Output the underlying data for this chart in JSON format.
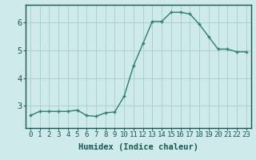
{
  "x": [
    0,
    1,
    2,
    3,
    4,
    5,
    6,
    7,
    8,
    9,
    10,
    11,
    12,
    13,
    14,
    15,
    16,
    17,
    18,
    19,
    20,
    21,
    22,
    23
  ],
  "y": [
    2.65,
    2.8,
    2.8,
    2.8,
    2.8,
    2.85,
    2.65,
    2.62,
    2.75,
    2.78,
    3.35,
    4.45,
    5.25,
    6.05,
    6.05,
    6.38,
    6.38,
    6.32,
    5.95,
    5.5,
    5.05,
    5.05,
    4.95,
    4.95
  ],
  "line_color": "#2e7d6e",
  "marker": "+",
  "marker_size": 3,
  "marker_lw": 1.0,
  "line_width": 1.0,
  "bg_color": "#ceeaea",
  "grid_color": "#aacccc",
  "axis_color": "#1a5555",
  "tick_color": "#1a5555",
  "xlabel": "Humidex (Indice chaleur)",
  "xlim": [
    -0.5,
    23.5
  ],
  "ylim": [
    2.2,
    6.65
  ],
  "yticks": [
    3,
    4,
    5,
    6
  ],
  "xticks": [
    0,
    1,
    2,
    3,
    4,
    5,
    6,
    7,
    8,
    9,
    10,
    11,
    12,
    13,
    14,
    15,
    16,
    17,
    18,
    19,
    20,
    21,
    22,
    23
  ],
  "xtick_labels": [
    "0",
    "1",
    "2",
    "3",
    "4",
    "5",
    "6",
    "7",
    "8",
    "9",
    "10",
    "11",
    "12",
    "13",
    "14",
    "15",
    "16",
    "17",
    "18",
    "19",
    "20",
    "21",
    "22",
    "23"
  ],
  "tick_fontsize": 6.5,
  "xlabel_fontsize": 7.5
}
